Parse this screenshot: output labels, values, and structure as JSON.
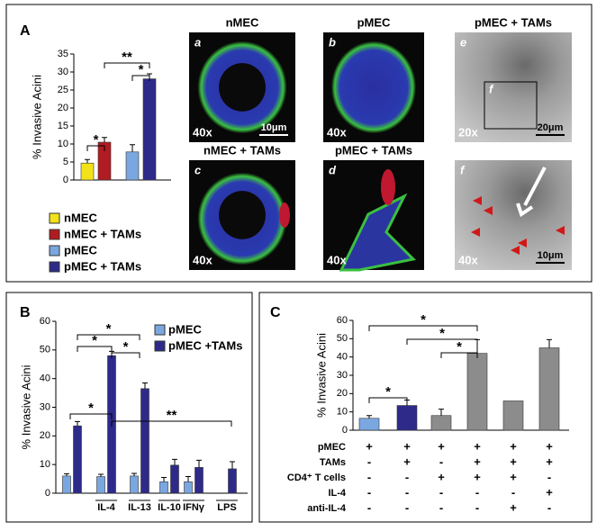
{
  "panel_labels": [
    "A",
    "B",
    "C"
  ],
  "chart_data": [
    {
      "type": "bar",
      "ylabel": "% Invasive Acini",
      "categories": [
        "nMEC",
        "nMEC + TAMs",
        "pMEC",
        "pMEC + TAMs"
      ],
      "values": [
        4.7,
        10.5,
        7.8,
        28.1
      ],
      "errors": [
        1,
        1.3,
        2,
        1.4
      ],
      "colors": [
        "#f2e21a",
        "#b01c22",
        "#7aa7e0",
        "#2e2a8a"
      ],
      "ylim": [
        0,
        35
      ],
      "yticks": [
        0,
        5,
        10,
        15,
        20,
        25,
        30,
        35
      ],
      "annotations": [
        "*",
        "**",
        "*"
      ],
      "legend": "below"
    },
    {
      "type": "grouped_bar",
      "ylabel": "% Invasive Acini",
      "categories": [
        null,
        "IL-4",
        "IL-13",
        "IL-10",
        "IFNγ",
        "LPS"
      ],
      "series": [
        {
          "name": "pMEC",
          "color": "#7aa7e0",
          "values": [
            6,
            5.8,
            6,
            4,
            4,
            null
          ],
          "errors": [
            0.8,
            0.8,
            0.9,
            1.5,
            1.8,
            null
          ]
        },
        {
          "name": "pMEC +TAMs",
          "color": "#2e2a8a",
          "values": [
            23.5,
            48,
            36.5,
            9.8,
            9,
            8.5
          ],
          "errors": [
            1.5,
            1.5,
            2,
            2,
            2.5,
            2.5
          ]
        }
      ],
      "ylim": [
        0,
        60
      ],
      "yticks": [
        0,
        10,
        20,
        30,
        40,
        50,
        60
      ],
      "annotations": [
        "*",
        "*",
        "*",
        "*",
        "**"
      ],
      "legend": "upper right"
    },
    {
      "type": "bar",
      "ylabel": "% Invasive Acini",
      "values": [
        6.5,
        13.5,
        8,
        42,
        16,
        45
      ],
      "errors": [
        1.5,
        3,
        3.5,
        7.5,
        null,
        4.5
      ],
      "colors": [
        "#7aa7e0",
        "#2e2a8a",
        "#8c8c8c",
        "#8c8c8c",
        "#8c8c8c",
        "#8c8c8c"
      ],
      "ylim": [
        0,
        60
      ],
      "yticks": [
        0,
        10,
        20,
        30,
        40,
        50,
        60
      ],
      "annotations": [
        "*",
        "*",
        "*",
        "*"
      ]
    }
  ],
  "images": [
    {
      "title": "nMEC",
      "letter": "a",
      "magnification": "40x",
      "scale": "10μm"
    },
    {
      "title": "pMEC",
      "letter": "b",
      "magnification": "40x"
    },
    {
      "title": "pMEC + TAMs",
      "letter": "e",
      "magnification": "20x",
      "scale": "20μm",
      "inset": "f"
    },
    {
      "title": "nMEC + TAMs",
      "letter": "c",
      "magnification": "40x"
    },
    {
      "title": "pMEC + TAMs",
      "letter": "d",
      "magnification": "40x"
    },
    {
      "letter": "f",
      "magnification": "40x",
      "scale": "10μm"
    }
  ],
  "conditions_table": {
    "rows": [
      {
        "label": "pMEC",
        "cells": [
          "+",
          "+",
          "+",
          "+",
          "+",
          "+"
        ]
      },
      {
        "label": "TAMs",
        "cells": [
          "-",
          "+",
          "-",
          "+",
          "+",
          "+"
        ]
      },
      {
        "label": "CD4⁺ T cells",
        "cells": [
          "-",
          "-",
          "+",
          "+",
          "+",
          "-"
        ]
      },
      {
        "label": "IL-4",
        "cells": [
          "-",
          "-",
          "-",
          "-",
          "-",
          "+"
        ]
      },
      {
        "label": "anti-IL-4",
        "cells": [
          "-",
          "-",
          "-",
          "-",
          "+",
          "-"
        ]
      }
    ]
  }
}
